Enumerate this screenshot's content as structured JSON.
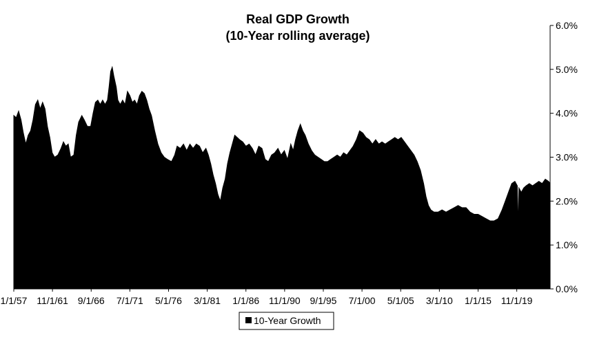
{
  "chart_data": {
    "type": "area",
    "title": "Real GDP Growth",
    "subtitle": "(10-Year rolling average)",
    "xlabel": "",
    "ylabel": "",
    "x_ticks": [
      "1/1/57",
      "11/1/61",
      "9/1/66",
      "7/1/71",
      "5/1/76",
      "3/1/81",
      "1/1/86",
      "11/1/90",
      "9/1/95",
      "7/1/00",
      "5/1/05",
      "3/1/10",
      "1/1/15",
      "11/1/19"
    ],
    "y_ticks": [
      "0.0%",
      "1.0%",
      "2.0%",
      "3.0%",
      "4.0%",
      "5.0%",
      "6.0%"
    ],
    "ylim": [
      0,
      6
    ],
    "xlim": [
      1957.0,
      2024.0
    ],
    "y_axis_side": "right",
    "grid": false,
    "legend": {
      "position": "bottom",
      "entries": [
        "10-Year Growth"
      ]
    },
    "series": [
      {
        "name": "10-Year Growth",
        "color": "#000000",
        "points": [
          [
            1957.0,
            3.95
          ],
          [
            1957.3,
            3.9
          ],
          [
            1957.6,
            4.05
          ],
          [
            1957.9,
            3.85
          ],
          [
            1958.2,
            3.55
          ],
          [
            1958.5,
            3.3
          ],
          [
            1958.8,
            3.5
          ],
          [
            1959.1,
            3.6
          ],
          [
            1959.4,
            3.85
          ],
          [
            1959.7,
            4.2
          ],
          [
            1960.0,
            4.3
          ],
          [
            1960.3,
            4.1
          ],
          [
            1960.6,
            4.25
          ],
          [
            1960.9,
            4.1
          ],
          [
            1961.2,
            3.7
          ],
          [
            1961.5,
            3.45
          ],
          [
            1961.8,
            3.1
          ],
          [
            1962.1,
            3.0
          ],
          [
            1962.5,
            3.05
          ],
          [
            1962.9,
            3.2
          ],
          [
            1963.2,
            3.35
          ],
          [
            1963.5,
            3.25
          ],
          [
            1963.8,
            3.3
          ],
          [
            1964.1,
            3.0
          ],
          [
            1964.5,
            3.05
          ],
          [
            1964.8,
            3.5
          ],
          [
            1965.1,
            3.8
          ],
          [
            1965.5,
            3.95
          ],
          [
            1965.8,
            3.85
          ],
          [
            1966.2,
            3.7
          ],
          [
            1966.6,
            3.7
          ],
          [
            1966.9,
            4.0
          ],
          [
            1967.2,
            4.25
          ],
          [
            1967.5,
            4.3
          ],
          [
            1967.8,
            4.2
          ],
          [
            1968.1,
            4.3
          ],
          [
            1968.4,
            4.2
          ],
          [
            1968.7,
            4.3
          ],
          [
            1968.9,
            4.6
          ],
          [
            1969.1,
            4.95
          ],
          [
            1969.3,
            5.05
          ],
          [
            1969.5,
            4.85
          ],
          [
            1969.8,
            4.6
          ],
          [
            1970.0,
            4.3
          ],
          [
            1970.3,
            4.2
          ],
          [
            1970.6,
            4.3
          ],
          [
            1970.9,
            4.2
          ],
          [
            1971.2,
            4.5
          ],
          [
            1971.5,
            4.4
          ],
          [
            1971.8,
            4.25
          ],
          [
            1972.1,
            4.3
          ],
          [
            1972.4,
            4.2
          ],
          [
            1972.7,
            4.4
          ],
          [
            1973.0,
            4.5
          ],
          [
            1973.3,
            4.45
          ],
          [
            1973.6,
            4.3
          ],
          [
            1973.9,
            4.1
          ],
          [
            1974.2,
            3.95
          ],
          [
            1974.6,
            3.6
          ],
          [
            1975.0,
            3.3
          ],
          [
            1975.4,
            3.1
          ],
          [
            1975.8,
            3.0
          ],
          [
            1976.2,
            2.95
          ],
          [
            1976.7,
            2.9
          ],
          [
            1977.1,
            3.05
          ],
          [
            1977.4,
            3.25
          ],
          [
            1977.8,
            3.2
          ],
          [
            1978.2,
            3.3
          ],
          [
            1978.6,
            3.15
          ],
          [
            1979.0,
            3.3
          ],
          [
            1979.4,
            3.2
          ],
          [
            1979.8,
            3.3
          ],
          [
            1980.2,
            3.25
          ],
          [
            1980.6,
            3.1
          ],
          [
            1981.0,
            3.2
          ],
          [
            1981.3,
            3.05
          ],
          [
            1981.6,
            2.85
          ],
          [
            1981.9,
            2.6
          ],
          [
            1982.2,
            2.4
          ],
          [
            1982.5,
            2.15
          ],
          [
            1982.8,
            2.0
          ],
          [
            1983.1,
            2.3
          ],
          [
            1983.4,
            2.5
          ],
          [
            1983.7,
            2.85
          ],
          [
            1984.0,
            3.1
          ],
          [
            1984.3,
            3.3
          ],
          [
            1984.6,
            3.5
          ],
          [
            1984.9,
            3.45
          ],
          [
            1985.2,
            3.4
          ],
          [
            1985.6,
            3.35
          ],
          [
            1986.0,
            3.25
          ],
          [
            1986.4,
            3.3
          ],
          [
            1986.8,
            3.2
          ],
          [
            1987.2,
            3.05
          ],
          [
            1987.6,
            3.25
          ],
          [
            1988.0,
            3.2
          ],
          [
            1988.4,
            2.95
          ],
          [
            1988.8,
            2.9
          ],
          [
            1989.2,
            3.05
          ],
          [
            1989.6,
            3.1
          ],
          [
            1990.0,
            3.2
          ],
          [
            1990.4,
            3.05
          ],
          [
            1990.8,
            3.15
          ],
          [
            1991.2,
            2.95
          ],
          [
            1991.6,
            3.3
          ],
          [
            1991.9,
            3.15
          ],
          [
            1992.2,
            3.4
          ],
          [
            1992.5,
            3.6
          ],
          [
            1992.8,
            3.75
          ],
          [
            1993.1,
            3.6
          ],
          [
            1993.4,
            3.5
          ],
          [
            1993.8,
            3.3
          ],
          [
            1994.2,
            3.15
          ],
          [
            1994.6,
            3.05
          ],
          [
            1995.0,
            3.0
          ],
          [
            1995.4,
            2.95
          ],
          [
            1995.8,
            2.9
          ],
          [
            1996.2,
            2.9
          ],
          [
            1996.6,
            2.95
          ],
          [
            1997.0,
            3.0
          ],
          [
            1997.4,
            3.05
          ],
          [
            1997.8,
            3.0
          ],
          [
            1998.2,
            3.1
          ],
          [
            1998.6,
            3.05
          ],
          [
            1999.0,
            3.15
          ],
          [
            1999.4,
            3.25
          ],
          [
            1999.8,
            3.4
          ],
          [
            2000.2,
            3.6
          ],
          [
            2000.6,
            3.55
          ],
          [
            2001.0,
            3.45
          ],
          [
            2001.4,
            3.4
          ],
          [
            2001.8,
            3.3
          ],
          [
            2002.2,
            3.4
          ],
          [
            2002.6,
            3.3
          ],
          [
            2003.0,
            3.35
          ],
          [
            2003.4,
            3.3
          ],
          [
            2003.8,
            3.35
          ],
          [
            2004.2,
            3.4
          ],
          [
            2004.6,
            3.45
          ],
          [
            2005.0,
            3.4
          ],
          [
            2005.4,
            3.45
          ],
          [
            2005.8,
            3.35
          ],
          [
            2006.2,
            3.25
          ],
          [
            2006.6,
            3.15
          ],
          [
            2007.0,
            3.05
          ],
          [
            2007.4,
            2.9
          ],
          [
            2007.8,
            2.7
          ],
          [
            2008.2,
            2.4
          ],
          [
            2008.5,
            2.1
          ],
          [
            2008.8,
            1.9
          ],
          [
            2009.1,
            1.8
          ],
          [
            2009.5,
            1.75
          ],
          [
            2010.0,
            1.75
          ],
          [
            2010.5,
            1.8
          ],
          [
            2011.0,
            1.75
          ],
          [
            2011.5,
            1.8
          ],
          [
            2012.0,
            1.85
          ],
          [
            2012.5,
            1.9
          ],
          [
            2013.0,
            1.85
          ],
          [
            2013.5,
            1.85
          ],
          [
            2014.0,
            1.75
          ],
          [
            2014.5,
            1.7
          ],
          [
            2015.0,
            1.7
          ],
          [
            2015.5,
            1.65
          ],
          [
            2016.0,
            1.6
          ],
          [
            2016.5,
            1.55
          ],
          [
            2017.0,
            1.55
          ],
          [
            2017.5,
            1.6
          ],
          [
            2018.0,
            1.8
          ],
          [
            2018.4,
            2.0
          ],
          [
            2018.8,
            2.2
          ],
          [
            2019.2,
            2.4
          ],
          [
            2019.6,
            2.45
          ],
          [
            2019.9,
            2.35
          ],
          [
            2020.0,
            1.35
          ],
          [
            2020.1,
            2.3
          ],
          [
            2020.4,
            2.2
          ],
          [
            2020.7,
            2.3
          ],
          [
            2021.0,
            2.35
          ],
          [
            2021.4,
            2.4
          ],
          [
            2021.8,
            2.35
          ],
          [
            2022.2,
            2.4
          ],
          [
            2022.6,
            2.45
          ],
          [
            2023.0,
            2.4
          ],
          [
            2023.4,
            2.5
          ],
          [
            2023.8,
            2.45
          ],
          [
            2024.0,
            2.4
          ]
        ]
      }
    ]
  }
}
